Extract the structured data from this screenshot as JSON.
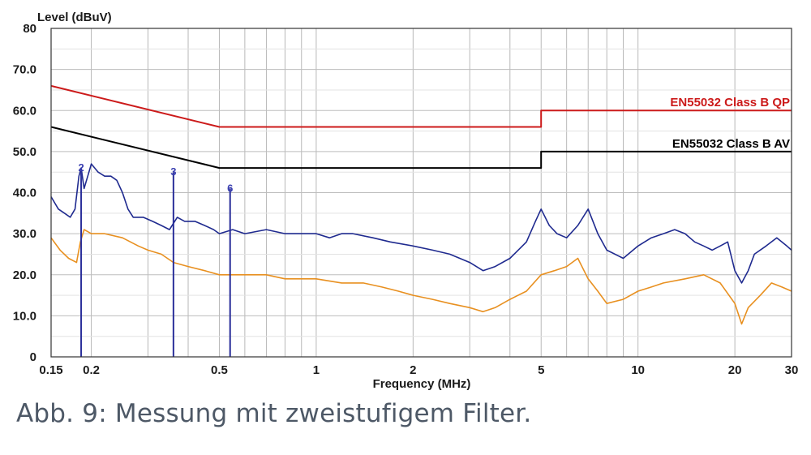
{
  "caption": "Abb. 9: Messung mit zweistufigem Filter.",
  "chart_data": {
    "type": "line",
    "ylabel": "Level (dBuV)",
    "xlabel": "Frequency (MHz)",
    "x_scale": "log",
    "xlim": [
      0.15,
      30
    ],
    "ylim": [
      0,
      80
    ],
    "grid": true,
    "x_ticks": [
      {
        "value": 0.15,
        "label": "0.15"
      },
      {
        "value": 0.2,
        "label": "0.2"
      },
      {
        "value": 0.5,
        "label": "0.5"
      },
      {
        "value": 1,
        "label": "1"
      },
      {
        "value": 2,
        "label": "2"
      },
      {
        "value": 5,
        "label": "5"
      },
      {
        "value": 10,
        "label": "10"
      },
      {
        "value": 20,
        "label": "20"
      },
      {
        "value": 30,
        "label": "30"
      }
    ],
    "y_ticks": [
      {
        "value": 0,
        "label": "0"
      },
      {
        "value": 10,
        "label": "10.0"
      },
      {
        "value": 20,
        "label": "20.0"
      },
      {
        "value": 30,
        "label": "30.0"
      },
      {
        "value": 40,
        "label": "40.0"
      },
      {
        "value": 50,
        "label": "50.0"
      },
      {
        "value": 60,
        "label": "60.0"
      },
      {
        "value": 70,
        "label": "70.0"
      },
      {
        "value": 80,
        "label": "80"
      }
    ],
    "series": [
      {
        "name": "EN55032 Class B QP",
        "color": "#cc1a1a",
        "points": [
          [
            0.15,
            66
          ],
          [
            0.5,
            56
          ],
          [
            5,
            56
          ],
          [
            5,
            60
          ],
          [
            30,
            60
          ]
        ]
      },
      {
        "name": "EN55032 Class B AV",
        "color": "#000000",
        "points": [
          [
            0.15,
            56
          ],
          [
            0.5,
            46
          ],
          [
            5,
            46
          ],
          [
            5,
            50
          ],
          [
            30,
            50
          ]
        ]
      },
      {
        "color": "#1f2a8f",
        "points": [
          [
            0.15,
            39
          ],
          [
            0.158,
            36
          ],
          [
            0.165,
            35
          ],
          [
            0.172,
            34
          ],
          [
            0.178,
            36
          ],
          [
            0.183,
            44
          ],
          [
            0.186,
            46
          ],
          [
            0.19,
            41
          ],
          [
            0.195,
            44
          ],
          [
            0.2,
            47
          ],
          [
            0.21,
            45
          ],
          [
            0.22,
            44
          ],
          [
            0.23,
            44
          ],
          [
            0.24,
            43
          ],
          [
            0.25,
            40
          ],
          [
            0.26,
            36
          ],
          [
            0.27,
            34
          ],
          [
            0.29,
            34
          ],
          [
            0.31,
            33
          ],
          [
            0.33,
            32
          ],
          [
            0.35,
            31
          ],
          [
            0.37,
            34
          ],
          [
            0.39,
            33
          ],
          [
            0.42,
            33
          ],
          [
            0.45,
            32
          ],
          [
            0.48,
            31
          ],
          [
            0.5,
            30
          ],
          [
            0.55,
            31
          ],
          [
            0.6,
            30
          ],
          [
            0.7,
            31
          ],
          [
            0.8,
            30
          ],
          [
            0.9,
            30
          ],
          [
            1.0,
            30
          ],
          [
            1.1,
            29
          ],
          [
            1.2,
            30
          ],
          [
            1.3,
            30
          ],
          [
            1.5,
            29
          ],
          [
            1.7,
            28
          ],
          [
            2.0,
            27
          ],
          [
            2.3,
            26
          ],
          [
            2.6,
            25
          ],
          [
            3.0,
            23
          ],
          [
            3.3,
            21
          ],
          [
            3.6,
            22
          ],
          [
            4.0,
            24
          ],
          [
            4.5,
            28
          ],
          [
            4.8,
            33
          ],
          [
            5.0,
            36
          ],
          [
            5.3,
            32
          ],
          [
            5.6,
            30
          ],
          [
            6.0,
            29
          ],
          [
            6.5,
            32
          ],
          [
            7.0,
            36
          ],
          [
            7.5,
            30
          ],
          [
            8.0,
            26
          ],
          [
            9.0,
            24
          ],
          [
            10,
            27
          ],
          [
            11,
            29
          ],
          [
            12,
            30
          ],
          [
            13,
            31
          ],
          [
            14,
            30
          ],
          [
            15,
            28
          ],
          [
            16,
            27
          ],
          [
            17,
            26
          ],
          [
            18,
            27
          ],
          [
            19,
            28
          ],
          [
            20,
            21
          ],
          [
            21,
            18
          ],
          [
            22,
            21
          ],
          [
            23,
            25
          ],
          [
            25,
            27
          ],
          [
            27,
            29
          ],
          [
            29,
            27
          ],
          [
            30,
            26
          ]
        ]
      },
      {
        "color": "#e89020",
        "points": [
          [
            0.15,
            29
          ],
          [
            0.16,
            26
          ],
          [
            0.17,
            24
          ],
          [
            0.18,
            23
          ],
          [
            0.185,
            28
          ],
          [
            0.19,
            31
          ],
          [
            0.2,
            30
          ],
          [
            0.22,
            30
          ],
          [
            0.25,
            29
          ],
          [
            0.28,
            27
          ],
          [
            0.3,
            26
          ],
          [
            0.33,
            25
          ],
          [
            0.36,
            23
          ],
          [
            0.4,
            22
          ],
          [
            0.45,
            21
          ],
          [
            0.5,
            20
          ],
          [
            0.55,
            20
          ],
          [
            0.6,
            20
          ],
          [
            0.7,
            20
          ],
          [
            0.8,
            19
          ],
          [
            0.9,
            19
          ],
          [
            1.0,
            19
          ],
          [
            1.2,
            18
          ],
          [
            1.4,
            18
          ],
          [
            1.6,
            17
          ],
          [
            1.8,
            16
          ],
          [
            2.0,
            15
          ],
          [
            2.3,
            14
          ],
          [
            2.6,
            13
          ],
          [
            3.0,
            12
          ],
          [
            3.3,
            11
          ],
          [
            3.6,
            12
          ],
          [
            4.0,
            14
          ],
          [
            4.5,
            16
          ],
          [
            5.0,
            20
          ],
          [
            5.5,
            21
          ],
          [
            6.0,
            22
          ],
          [
            6.5,
            24
          ],
          [
            7.0,
            19
          ],
          [
            7.5,
            16
          ],
          [
            8.0,
            13
          ],
          [
            9.0,
            14
          ],
          [
            10,
            16
          ],
          [
            11,
            17
          ],
          [
            12,
            18
          ],
          [
            14,
            19
          ],
          [
            16,
            20
          ],
          [
            18,
            18
          ],
          [
            20,
            13
          ],
          [
            21,
            8
          ],
          [
            22,
            12
          ],
          [
            24,
            15
          ],
          [
            26,
            18
          ],
          [
            28,
            17
          ],
          [
            30,
            16
          ]
        ]
      }
    ],
    "markers": [
      {
        "label": "2",
        "x": 0.186,
        "y": 46
      },
      {
        "label": "3",
        "x": 0.36,
        "y": 45
      },
      {
        "label": "6",
        "x": 0.54,
        "y": 41
      }
    ]
  }
}
